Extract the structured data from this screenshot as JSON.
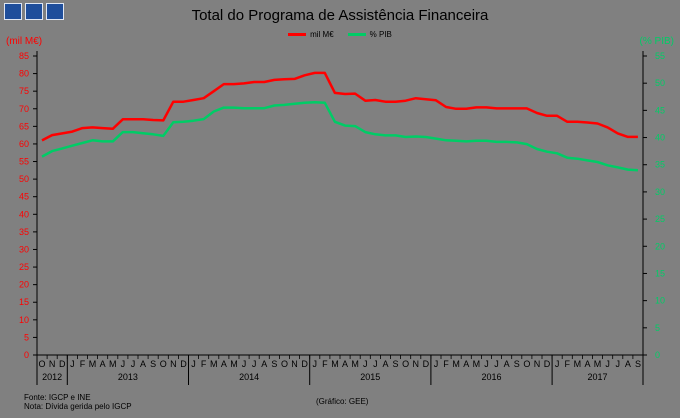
{
  "header": {
    "title": "Total do Programa de Assistência Financeira",
    "unit_left": "(mil M€)",
    "unit_right": "(% PIB)"
  },
  "footer": {
    "source": "Fonte: IGCP e INE",
    "note": "Nota: Dívida gerida pelo IGCP",
    "credit": "(Gráfico: GEE)"
  },
  "colors": {
    "eur_series": "#ff0000",
    "pib_series": "#00cc66",
    "logo": "#1f4e9b"
  },
  "chart_data": {
    "type": "line",
    "title": "Total do Programa de Assistência Financeira",
    "grid": false,
    "legend_position": "top-center",
    "y_left": {
      "label": "(mil M€)",
      "min": 0,
      "max": 85,
      "step": 5
    },
    "y_right": {
      "label": "(% PIB)",
      "min": 0,
      "max": 55,
      "step": 5
    },
    "x": [
      "O",
      "N",
      "D",
      "J",
      "F",
      "M",
      "A",
      "M",
      "J",
      "J",
      "A",
      "S",
      "O",
      "N",
      "D",
      "J",
      "F",
      "M",
      "A",
      "M",
      "J",
      "J",
      "A",
      "S",
      "O",
      "N",
      "D",
      "J",
      "F",
      "M",
      "A",
      "M",
      "J",
      "J",
      "A",
      "S",
      "O",
      "N",
      "D",
      "J",
      "F",
      "M",
      "A",
      "M",
      "J",
      "J",
      "A",
      "S",
      "O",
      "N",
      "D",
      "J",
      "F",
      "M",
      "A",
      "M",
      "J",
      "J",
      "A",
      "S"
    ],
    "year_labels": [
      {
        "label": "2012",
        "start": 0,
        "end": 2
      },
      {
        "label": "2013",
        "start": 3,
        "end": 14
      },
      {
        "label": "2014",
        "start": 15,
        "end": 26
      },
      {
        "label": "2015",
        "start": 27,
        "end": 38
      },
      {
        "label": "2016",
        "start": 39,
        "end": 50
      },
      {
        "label": "2017",
        "start": 51,
        "end": 59
      }
    ],
    "series": [
      {
        "name": "mil M€",
        "axis": "left",
        "values": [
          61,
          62.5,
          63,
          63.5,
          64.5,
          64.7,
          64.5,
          64.3,
          67,
          67,
          67,
          66.8,
          66.7,
          72,
          72,
          72.5,
          73,
          75,
          77,
          77,
          77.2,
          77.6,
          77.6,
          78.2,
          78.4,
          78.5,
          79.5,
          80.2,
          80.2,
          74.5,
          74.2,
          74.3,
          72.3,
          72.5,
          72,
          72,
          72.3,
          73,
          72.7,
          72.4,
          70.5,
          70,
          70,
          70.4,
          70.4,
          70.1,
          70.1,
          70.1,
          70.1,
          68.8,
          68,
          68,
          66.3,
          66.3,
          66.1,
          65.8,
          64.7,
          63,
          62,
          62
        ]
      },
      {
        "name": "% PIB",
        "axis": "right",
        "values": [
          36.5,
          37.5,
          38,
          38.5,
          39,
          39.5,
          39.3,
          39.3,
          41,
          41,
          40.8,
          40.6,
          40.3,
          42.8,
          42.9,
          43.1,
          43.4,
          44.8,
          45.5,
          45.5,
          45.4,
          45.4,
          45.4,
          45.9,
          46,
          46.2,
          46.4,
          46.5,
          46.4,
          42.9,
          42.2,
          42.1,
          41,
          40.6,
          40.4,
          40.4,
          40.1,
          40.2,
          40.1,
          39.8,
          39.5,
          39.4,
          39.3,
          39.4,
          39.4,
          39.2,
          39.2,
          39.1,
          38.8,
          37.9,
          37.4,
          37.1,
          36.3,
          36.1,
          35.8,
          35.5,
          34.9,
          34.5,
          34.1,
          34
        ]
      }
    ]
  }
}
